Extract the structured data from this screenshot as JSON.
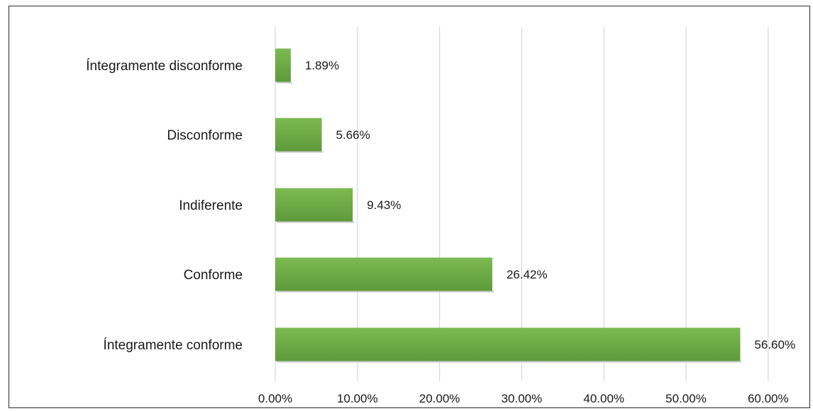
{
  "chart_data": {
    "type": "bar",
    "orientation": "horizontal",
    "categories": [
      "Íntegramente disconforme",
      "Disconforme",
      "Indiferente",
      "Conforme",
      "Íntegramente conforme"
    ],
    "values": [
      1.89,
      5.66,
      9.43,
      26.42,
      56.6
    ],
    "value_labels": [
      "1.89%",
      "5.66%",
      "9.43%",
      "26.42%",
      "56.60%"
    ],
    "x_ticks": [
      "0.00%",
      "10.00%",
      "20.00%",
      "30.00%",
      "40.00%",
      "50.00%",
      "60.00%"
    ],
    "xlim": [
      0,
      60
    ],
    "grid": "vertical",
    "legend": "none",
    "title": "",
    "xlabel": "",
    "ylabel": "",
    "colors": {
      "bar": "#70ad47",
      "bar_light": "#7dba52",
      "bar_dark": "#5e9a3a",
      "grid": "#d9d9d9"
    }
  }
}
